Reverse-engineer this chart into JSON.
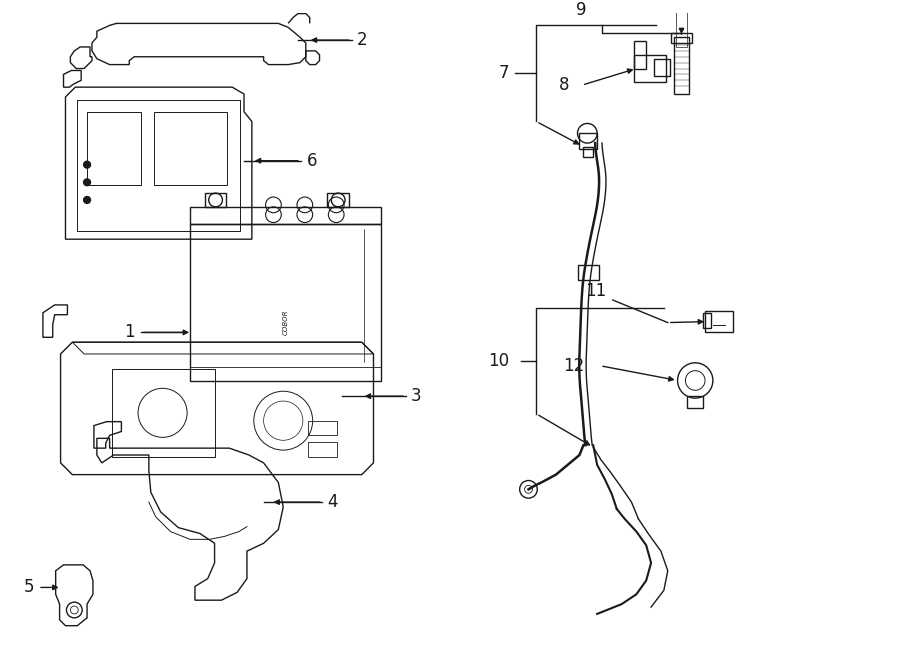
{
  "bg_color": "#ffffff",
  "line_color": "#1a1a1a",
  "lw": 1.0,
  "fig_w": 9.0,
  "fig_h": 6.61,
  "dpi": 100
}
